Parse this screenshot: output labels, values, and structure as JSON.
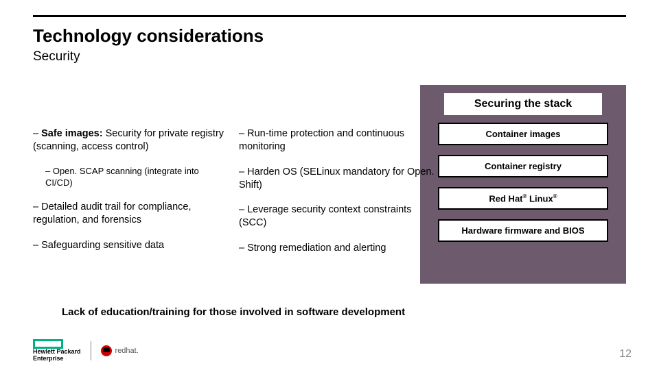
{
  "title": "Technology considerations",
  "subtitle": "Security",
  "panel_header": "Securing the stack",
  "col1": {
    "b1_bold": "Safe images:",
    "b1_rest": " Security for private registry (scanning, access control)",
    "b1_sub": "Open. SCAP scanning (integrate into CI/CD)",
    "b2": "Detailed audit trail for compliance, regulation, and forensics",
    "b3": "Safeguarding sensitive data"
  },
  "col2": {
    "b1": "Run-time protection and continuous monitoring",
    "b2": "Harden OS (SELinux mandatory for Open. Shift)",
    "b3": "Leverage security context constraints (SCC)",
    "b4": "Strong remediation and alerting"
  },
  "boxes": {
    "b1": "Container images",
    "b2": "Container registry",
    "b3": "Red Hat® Linux®",
    "b4": "Hardware firmware and BIOS"
  },
  "footnote": "Lack of education/training for those involved in software development",
  "footer_hpe1": "Hewlett Packard",
  "footer_hpe2": "Enterprise",
  "footer_redhat": "redhat.",
  "pagenum": "12",
  "colors": {
    "panel_bg": "#6d5a6d",
    "hpe_green": "#00b188"
  }
}
